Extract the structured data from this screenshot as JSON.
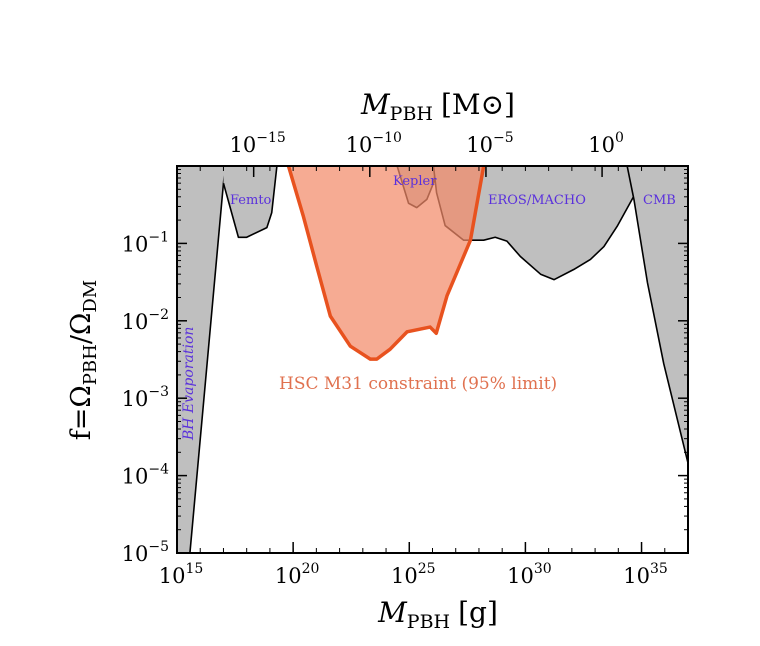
{
  "chart_data": {
    "type": "area",
    "title": "",
    "xlabel": "M_PBH [g]",
    "xlabel_main": "M",
    "xlabel_sub": "PBH",
    "xlabel_unit": "[g]",
    "top_xlabel_main": "M",
    "top_xlabel_sub": "PBH",
    "top_xlabel_unit": "[M⊙]",
    "ylabel": "f=Ω_PBH/Ω_DM",
    "ylabel_prefix": "f=Ω",
    "ylabel_sub1": "PBH",
    "ylabel_mid": "/Ω",
    "ylabel_sub2": "DM",
    "x_scale": "log",
    "y_scale": "log",
    "xlim": [
      1000000000000000.0,
      1e+37
    ],
    "ylim": [
      1e-05,
      1
    ],
    "x_ticks": [
      {
        "exp": "15",
        "value": 1000000000000000.0
      },
      {
        "exp": "20",
        "value": 1e+20
      },
      {
        "exp": "25",
        "value": 1e+25
      },
      {
        "exp": "30",
        "value": 1e+30
      },
      {
        "exp": "35",
        "value": 1e+35
      }
    ],
    "top_x_ticks": [
      {
        "exp": "−15",
        "value_msun": 1e-15
      },
      {
        "exp": "−10",
        "value_msun": 1e-10
      },
      {
        "exp": "−5",
        "value_msun": 1e-05
      },
      {
        "exp": "0",
        "value_msun": 1
      }
    ],
    "solar_mass_g": 2e+33,
    "y_ticks": [
      {
        "exp": "−5",
        "value": 1e-05
      },
      {
        "exp": "−4",
        "value": 0.0001
      },
      {
        "exp": "−3",
        "value": 0.001
      },
      {
        "exp": "−2",
        "value": 0.01
      },
      {
        "exp": "−1",
        "value": 0.1
      }
    ],
    "colors": {
      "excluded_fill": "#bfbfbf",
      "outline": "#000000",
      "hsc_fill": "#f28b6a",
      "hsc_line": "#e8521f",
      "label": "#5a30dc",
      "hsc_label": "#e0714f"
    },
    "series": [
      {
        "name": "BH Evaporation",
        "kind": "excluded",
        "fill_side": "left",
        "points": [
          [
            3600000000000000.0,
            1e-05
          ],
          [
            1e+17,
            0.6
          ],
          [
            1.2e+17,
            1
          ]
        ]
      },
      {
        "name": "Femto",
        "kind": "excluded",
        "fill_side": "above",
        "points": [
          [
            1e+17,
            0.6
          ],
          [
            4.4e+17,
            0.12
          ],
          [
            1e+18,
            0.12
          ],
          [
            7.4e+18,
            0.16
          ],
          [
            1.2e+19,
            0.25
          ],
          [
            2e+19,
            1
          ]
        ]
      },
      {
        "name": "Kepler",
        "kind": "excluded",
        "fill_side": "above",
        "points": [
          [
            3e+24,
            1
          ],
          [
            9.3e+24,
            0.33
          ],
          [
            2.1e+25,
            0.29
          ],
          [
            5.7e+25,
            0.37
          ],
          [
            1.1e+26,
            0.6
          ],
          [
            1.5e+26,
            1
          ]
        ]
      },
      {
        "name": "EROS/MACHO",
        "kind": "excluded",
        "fill_side": "above",
        "points": [
          [
            1.1e+26,
            1
          ],
          [
            1.5e+26,
            0.45
          ],
          [
            3.5e+26,
            0.17
          ],
          [
            2.2e+27,
            0.11
          ],
          [
            1.6e+28,
            0.11
          ],
          [
            5e+28,
            0.12
          ],
          [
            1.6e+29,
            0.107
          ],
          [
            6e+29,
            0.068
          ],
          [
            4.5e+30,
            0.04
          ],
          [
            1.7e+31,
            0.034
          ],
          [
            1.2e+32,
            0.046
          ],
          [
            6.3e+32,
            0.062
          ],
          [
            2.4e+33,
            0.091
          ],
          [
            8.9e+33,
            0.166
          ],
          [
            4.7e+34,
            0.41
          ],
          [
            9e+34,
            1
          ]
        ]
      },
      {
        "name": "CMB",
        "kind": "excluded",
        "fill_side": "above",
        "points": [
          [
            2.4e+34,
            1
          ],
          [
            4.7e+34,
            0.37
          ],
          [
            1.8e+35,
            0.031
          ],
          [
            9e+35,
            0.0028
          ],
          [
            1e+37,
            0.000145
          ]
        ]
      },
      {
        "name": "HSC M31 constraint (95% limit)",
        "kind": "constraint",
        "fill_side": "above",
        "points": [
          [
            6.3e+19,
            1
          ],
          [
            2.8e+20,
            0.22
          ],
          [
            1.05e+21,
            0.05
          ],
          [
            4e+21,
            0.0115
          ],
          [
            2.9e+22,
            0.0047
          ],
          [
            2.1e+23,
            0.0032
          ],
          [
            4e+23,
            0.0032
          ],
          [
            1.5e+24,
            0.0043
          ],
          [
            8e+24,
            0.0072
          ],
          [
            7.9e+25,
            0.0083
          ],
          [
            1.45e+26,
            0.0069
          ],
          [
            4.2e+26,
            0.021
          ],
          [
            4.3e+27,
            0.11
          ],
          [
            1.6e+28,
            1
          ]
        ]
      }
    ],
    "annotations": [
      "Femto",
      "Kepler",
      "EROS/MACHO",
      "CMB",
      "BH Evaporation",
      "HSC M31 constraint (95% limit)"
    ]
  }
}
